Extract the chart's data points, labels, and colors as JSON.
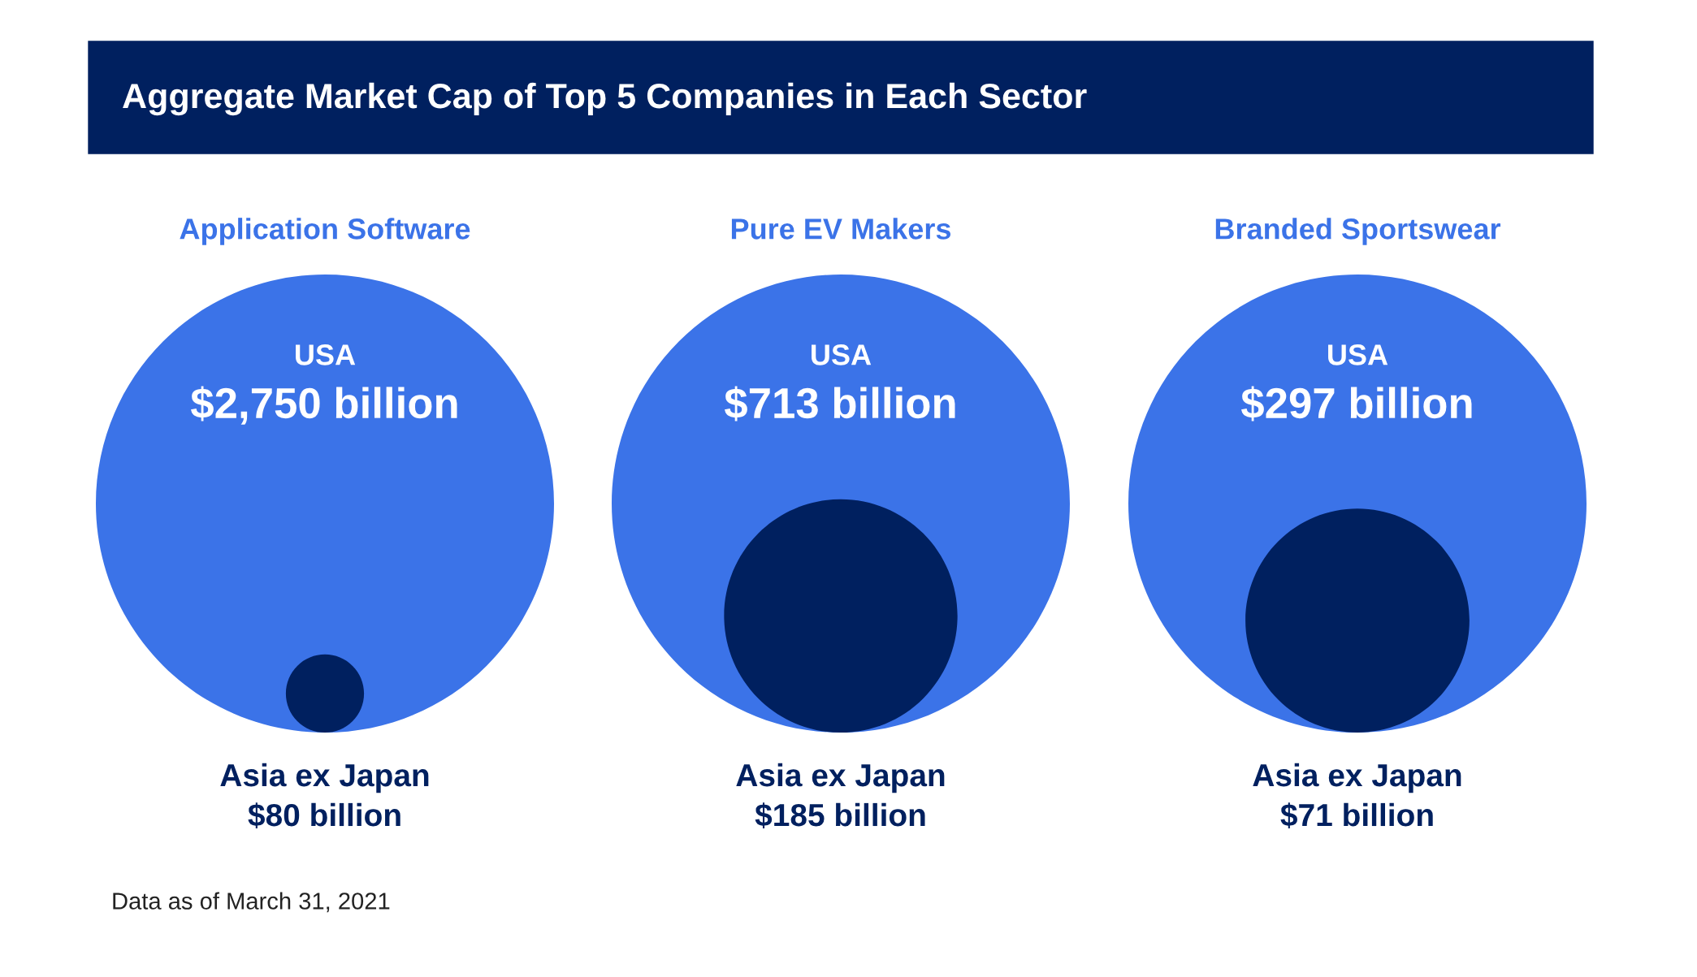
{
  "chart_data": [
    {
      "type": "other",
      "title": "Aggregate Market Cap of Top 5 Companies in Each Sector",
      "annotations": [
        "Data as of March 31, 2021"
      ]
    },
    {
      "type": "other",
      "title": "Application Software",
      "categories": [
        "USA",
        "Asia ex Japan"
      ],
      "values": [
        2750,
        80
      ],
      "value_labels": [
        "$2,750 billion",
        "$80 billion"
      ],
      "colors": [
        "#3b73e8",
        "#00205f"
      ]
    },
    {
      "type": "other",
      "title": "Pure EV Makers",
      "categories": [
        "USA",
        "Asia ex Japan"
      ],
      "values": [
        713,
        185
      ],
      "value_labels": [
        "$713 billion",
        "$185 billion"
      ],
      "colors": [
        "#3b73e8",
        "#00205f"
      ]
    },
    {
      "type": "other",
      "title": "Branded Sportswear",
      "categories": [
        "USA",
        "Asia ex Japan"
      ],
      "values": [
        297,
        71
      ],
      "value_labels": [
        "$297 billion",
        "$71 billion"
      ],
      "colors": [
        "#3b73e8",
        "#00205f"
      ]
    }
  ]
}
